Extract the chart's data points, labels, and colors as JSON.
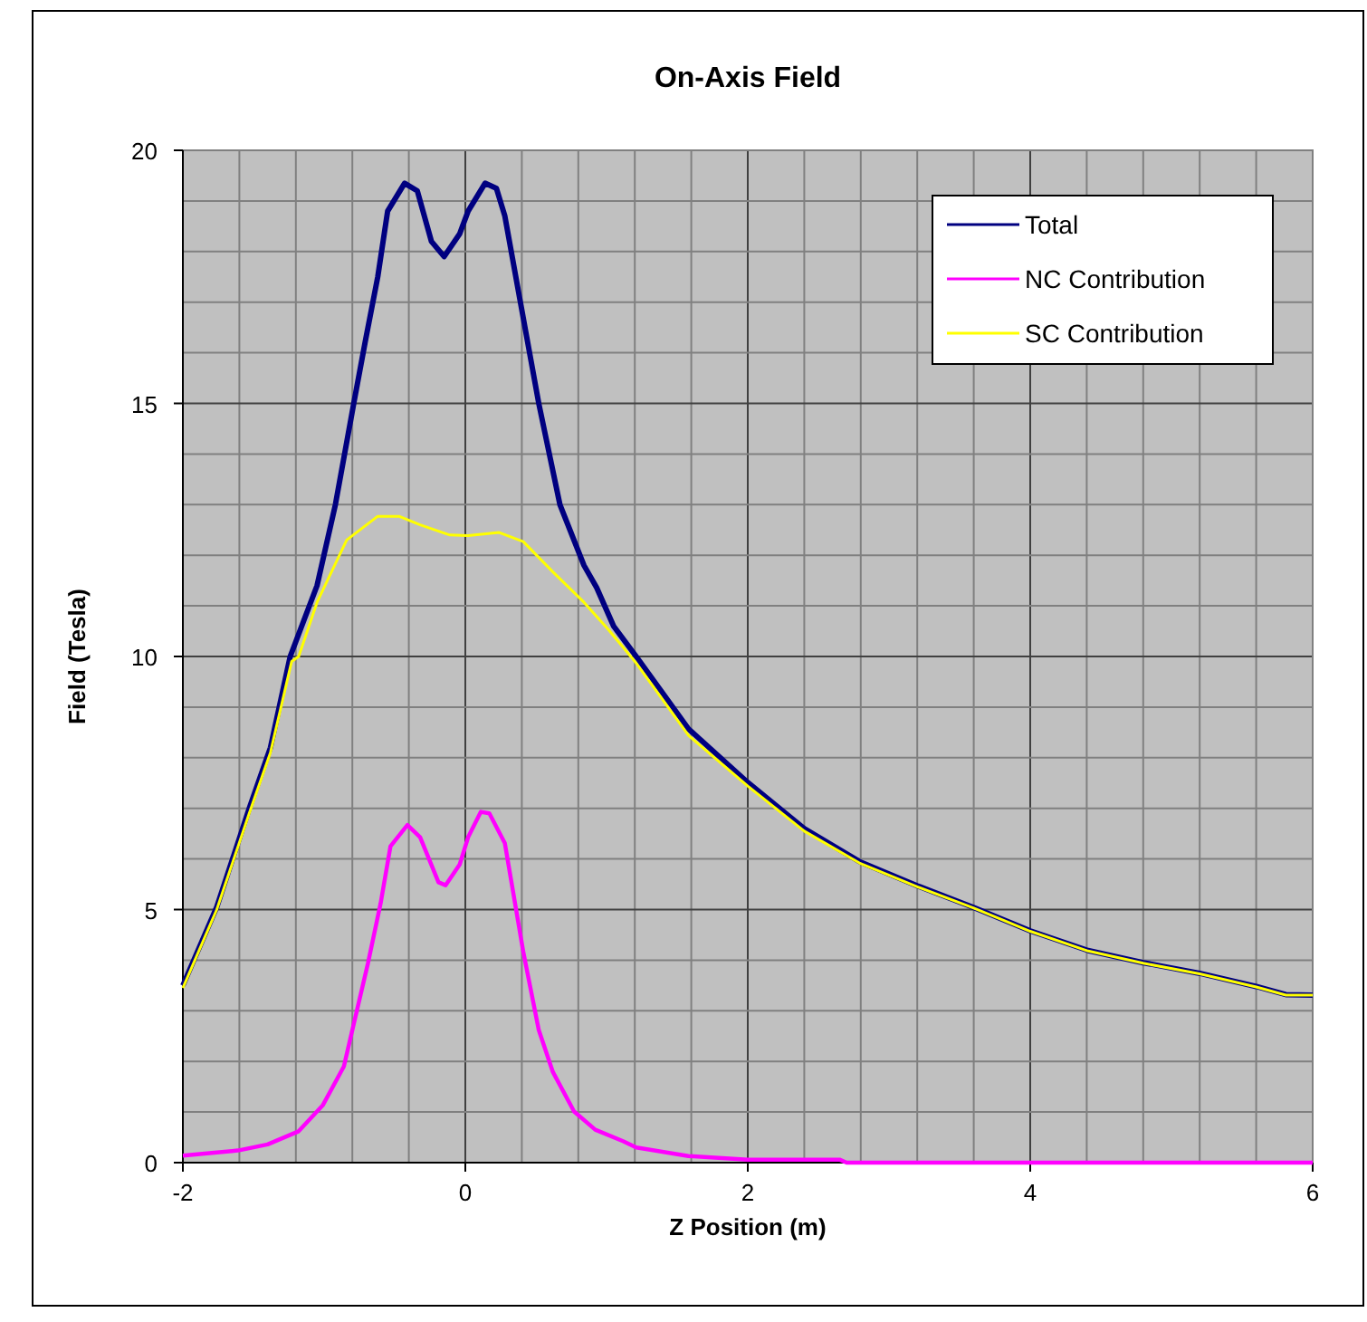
{
  "chart_data": {
    "type": "line",
    "title": "On-Axis Field",
    "xlabel": "Z Position (m)",
    "ylabel": "Field (Tesla)",
    "xlim": [
      -2,
      6
    ],
    "ylim": [
      0,
      20
    ],
    "xticks": [
      -2,
      {
        "value": -1.6,
        "label": null
      },
      {
        "value": -1.2,
        "label": null
      },
      {
        "value": -0.8,
        "label": null
      },
      {
        "value": -0.4,
        "label": null
      },
      0,
      {
        "value": 0.4,
        "label": null
      },
      {
        "value": 0.8,
        "label": null
      },
      {
        "value": 1.2,
        "label": null
      },
      {
        "value": 1.6,
        "label": null
      },
      2,
      {
        "value": 2.4,
        "label": null
      },
      {
        "value": 2.8,
        "label": null
      },
      {
        "value": 3.2,
        "label": null
      },
      {
        "value": 3.6,
        "label": null
      },
      4,
      {
        "value": 4.4,
        "label": null
      },
      {
        "value": 4.8,
        "label": null
      },
      {
        "value": 5.2,
        "label": null
      },
      {
        "value": 5.6,
        "label": null
      },
      6
    ],
    "yticks": [
      0,
      {
        "value": 1,
        "label": null
      },
      {
        "value": 2,
        "label": null
      },
      {
        "value": 3,
        "label": null
      },
      {
        "value": 4,
        "label": null
      },
      5,
      {
        "value": 6,
        "label": null
      },
      {
        "value": 7,
        "label": null
      },
      {
        "value": 8,
        "label": null
      },
      {
        "value": 9,
        "label": null
      },
      10,
      {
        "value": 11,
        "label": null
      },
      {
        "value": 12,
        "label": null
      },
      {
        "value": 13,
        "label": null
      },
      {
        "value": 14,
        "label": null
      },
      15,
      {
        "value": 16,
        "label": null
      },
      {
        "value": 17,
        "label": null
      },
      {
        "value": 18,
        "label": null
      },
      {
        "value": 19,
        "label": null
      },
      20
    ],
    "grid": true,
    "legend": "top right",
    "marker": "none",
    "line_style": "solid",
    "series": [
      {
        "name": "Total",
        "color": "#000080",
        "x": [
          -2,
          -1.76,
          -1.53,
          -1.38,
          -1.24,
          -1.05,
          -0.92,
          -0.79,
          -0.71,
          -0.62,
          -0.55,
          -0.43,
          -0.34,
          -0.24,
          -0.15,
          -0.04,
          0.02,
          0.14,
          0.22,
          0.28,
          0.39,
          0.52,
          0.67,
          0.84,
          0.93,
          1.05,
          1.21,
          1.58,
          2.0,
          2.4,
          2.79,
          3.2,
          3.6,
          4.0,
          4.41,
          4.8,
          5.2,
          5.6,
          5.81,
          6.0
        ],
        "values": [
          3.5,
          5.05,
          7.0,
          8.2,
          10.0,
          11.4,
          13.0,
          15.0,
          16.2,
          17.5,
          18.8,
          19.35,
          19.2,
          18.2,
          17.9,
          18.35,
          18.8,
          19.35,
          19.25,
          18.7,
          17.0,
          15.0,
          13.0,
          11.8,
          11.36,
          10.6,
          10.0,
          8.57,
          7.51,
          6.6,
          5.95,
          5.47,
          5.04,
          4.58,
          4.19,
          3.95,
          3.74,
          3.48,
          3.32,
          3.31
        ]
      },
      {
        "name": "NC Contribution",
        "color": "#ff00ff",
        "x": [
          -2,
          -1.61,
          -1.4,
          -1.18,
          -1.01,
          -0.86,
          -0.8,
          -0.69,
          -0.6,
          -0.53,
          -0.41,
          -0.32,
          -0.19,
          -0.14,
          -0.04,
          0.02,
          0.11,
          0.17,
          0.28,
          0.41,
          0.52,
          0.62,
          0.77,
          0.92,
          1.12,
          1.21,
          1.58,
          2.0,
          2.65,
          2.7,
          6.0
        ],
        "values": [
          0.14,
          0.24,
          0.36,
          0.62,
          1.13,
          1.9,
          2.62,
          3.93,
          5.12,
          6.25,
          6.67,
          6.43,
          5.54,
          5.48,
          5.89,
          6.43,
          6.93,
          6.9,
          6.31,
          4.17,
          2.62,
          1.79,
          1.01,
          0.65,
          0.42,
          0.3,
          0.13,
          0.06,
          0.06,
          0,
          0
        ]
      },
      {
        "name": "SC Contribution",
        "color": "#ffff00",
        "x": [
          -2,
          -1.76,
          -1.53,
          -1.38,
          -1.23,
          -1.18,
          -1.05,
          -0.84,
          -0.62,
          -0.47,
          -0.32,
          -0.11,
          0.02,
          0.24,
          0.41,
          0.62,
          0.84,
          1.01,
          1.21,
          1.58,
          2.0,
          2.4,
          2.79,
          3.2,
          3.6,
          4.0,
          4.41,
          4.8,
          5.2,
          5.6,
          5.81,
          6.0
        ],
        "values": [
          3.45,
          5.0,
          6.9,
          8.1,
          9.9,
          10.0,
          11.07,
          12.3,
          12.77,
          12.77,
          12.6,
          12.4,
          12.39,
          12.45,
          12.27,
          11.67,
          11.07,
          10.54,
          9.87,
          8.44,
          7.44,
          6.55,
          5.92,
          5.45,
          5.03,
          4.57,
          4.18,
          3.94,
          3.73,
          3.47,
          3.31,
          3.31
        ]
      }
    ]
  }
}
